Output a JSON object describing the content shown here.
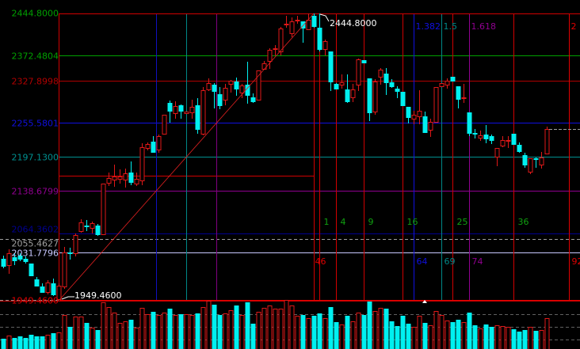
{
  "chart_data": {
    "type": "candlestick",
    "title": "",
    "colors": {
      "up": "#e01818",
      "down": "#00f0f0",
      "frame": "#d00000",
      "label_white": "#ffffff"
    },
    "ylim": [
      1949.46,
      2444.8
    ],
    "extremes": {
      "high_label": "2444.8000",
      "low_label": "1949.4600"
    },
    "price_levels": [
      {
        "value": 2444.8,
        "label": "2444.8000",
        "color": "#00a000",
        "style": "none"
      },
      {
        "value": 2372.4804,
        "label": "2372.4804",
        "color": "#00a000",
        "style": "solid"
      },
      {
        "value": 2327.8998,
        "label": "2327.8998",
        "color": "#b00000",
        "style": "solid"
      },
      {
        "value": 2255.5801,
        "label": "2255.5801",
        "color": "#1010e0",
        "style": "solid"
      },
      {
        "value": 2197.13,
        "label": "2197.1300",
        "color": "#009090",
        "style": "solid"
      },
      {
        "value": 2138.6799,
        "label": "2138.6799",
        "color": "#900090",
        "style": "solid"
      },
      {
        "value": 2064.3602,
        "label": "2064.3602",
        "color": "#000090",
        "style": "solid"
      },
      {
        "value": 2055.4627,
        "label": "2055.4627",
        "color": "#a0a0a0",
        "style": "dashed"
      },
      {
        "value": 2031.7796,
        "label": "2031.7796",
        "color": "#c8c8ff",
        "style": "solid"
      },
      {
        "value": 1949.46,
        "label": "1949.4600",
        "color": "#e00000",
        "style": "solid"
      }
    ],
    "fib_time_zones": [
      {
        "label": "1",
        "color": "#10a010"
      },
      {
        "label": "4",
        "color": "#10a010"
      },
      {
        "label": "9",
        "color": "#10a010"
      },
      {
        "label": "16",
        "color": "#10a010"
      },
      {
        "label": "25",
        "color": "#10a010"
      },
      {
        "label": "36",
        "color": "#10a010"
      }
    ],
    "fib_time_ratios": [
      {
        "ratio": "1.382",
        "count": "64",
        "color": "#1010e0"
      },
      {
        "ratio": "1.5",
        "count": "69",
        "color": "#008888"
      },
      {
        "ratio": "1.618",
        "count": "74",
        "color": "#900090"
      },
      {
        "ratio": "2",
        "count": "92",
        "color": "#e00000"
      }
    ],
    "base_count": {
      "count": "46",
      "color": "#e00000"
    },
    "retracement_time_lines": [
      {
        "ratio": 0.382,
        "color": "#1010c0"
      },
      {
        "ratio": 0.5,
        "color": "#008888"
      },
      {
        "ratio": 0.618,
        "color": "#800080"
      }
    ],
    "last_price": 2245.0,
    "candles_ohlc": [
      [
        2020.6,
        2026.1,
        2004.2,
        2008.3
      ],
      [
        2009.7,
        2037.1,
        1994.7,
        2030.2
      ],
      [
        2023.4,
        2030.2,
        2009.7,
        2017.9
      ],
      [
        2026.1,
        2030.2,
        2016.5,
        2020.6
      ],
      [
        2020.6,
        2024.8,
        2012.4,
        2016.5
      ],
      [
        2012.4,
        2012.4,
        1991.9,
        1991.9
      ],
      [
        1985.0,
        1989.2,
        1972.7,
        1974.1
      ],
      [
        1972.7,
        1978.2,
        1961.8,
        1963.1
      ],
      [
        1963.1,
        1983.7,
        1959.0,
        1979.6
      ],
      [
        1978.2,
        1986.4,
        1956.3,
        1959.0
      ],
      [
        1950.8,
        1978.2,
        1949.5,
        1974.1
      ],
      [
        1972.7,
        2041.1,
        1968.6,
        2031.6
      ],
      [
        2031.0,
        2039.8,
        2019.3,
        2030.2
      ],
      [
        2030.2,
        2064.4,
        2024.8,
        2061.7
      ],
      [
        2068.5,
        2089.0,
        2065.8,
        2083.6
      ],
      [
        2077.5,
        2087.7,
        2068.5,
        2076.7
      ],
      [
        2074.0,
        2084.9,
        2064.4,
        2082.2
      ],
      [
        2078.1,
        2080.8,
        2060.3,
        2063.1
      ],
      [
        2063.1,
        2150.6,
        2061.7,
        2150.6
      ],
      [
        2152.0,
        2169.8,
        2146.5,
        2160.2
      ],
      [
        2157.5,
        2183.5,
        2145.1,
        2162.9
      ],
      [
        2158.8,
        2175.2,
        2150.6,
        2162.9
      ],
      [
        2157.5,
        2176.6,
        2143.8,
        2168.4
      ],
      [
        2169.8,
        2188.9,
        2147.9,
        2153.3
      ],
      [
        2150.6,
        2169.8,
        2146.5,
        2158.8
      ],
      [
        2156.1,
        2220.4,
        2147.9,
        2213.5
      ],
      [
        2212.2,
        2221.8,
        2208.1,
        2219.0
      ],
      [
        2223.1,
        2232.7,
        2205.3,
        2205.3
      ],
      [
        2209.4,
        2235.4,
        2204.0,
        2232.7
      ],
      [
        2236.8,
        2269.7,
        2236.8,
        2269.7
      ],
      [
        2290.2,
        2294.3,
        2255.9,
        2276.5
      ],
      [
        2272.4,
        2292.9,
        2262.8,
        2284.7
      ],
      [
        2286.1,
        2287.4,
        2262.8,
        2276.5
      ],
      [
        2272.4,
        2275.1,
        2272.4,
        2275.1
      ],
      [
        2273.8,
        2295.7,
        2262.8,
        2283.3
      ],
      [
        2286.1,
        2298.4,
        2236.8,
        2245.0
      ],
      [
        2236.8,
        2317.6,
        2234.1,
        2312.1
      ],
      [
        2313.4,
        2332.6,
        2310.7,
        2324.4
      ],
      [
        2321.7,
        2324.4,
        2280.6,
        2310.7
      ],
      [
        2305.2,
        2317.6,
        2279.2,
        2286.1
      ],
      [
        2295.7,
        2323.0,
        2286.1,
        2316.2
      ],
      [
        2323.0,
        2329.9,
        2308.0,
        2328.5
      ],
      [
        2327.1,
        2334.0,
        2302.5,
        2314.8
      ],
      [
        2308.0,
        2323.0,
        2298.4,
        2320.3
      ],
      [
        2321.7,
        2361.3,
        2288.8,
        2303.9
      ],
      [
        2299.8,
        2306.6,
        2290.2,
        2292.9
      ],
      [
        2295.7,
        2346.3,
        2295.7,
        2346.3
      ],
      [
        2349.0,
        2362.7,
        2347.7,
        2358.6
      ],
      [
        2362.7,
        2384.6,
        2349.0,
        2381.9
      ],
      [
        2384.0,
        2390.1,
        2372.3,
        2384.6
      ],
      [
        2379.1,
        2421.5,
        2372.3,
        2418.8
      ],
      [
        2426.5,
        2440.7,
        2420.2,
        2427.0
      ],
      [
        2410.6,
        2438.0,
        2403.7,
        2431.1
      ],
      [
        2433.0,
        2440.7,
        2427.0,
        2433.8
      ],
      [
        2431.1,
        2431.1,
        2394.2,
        2420.2
      ],
      [
        2417.4,
        2444.8,
        2416.1,
        2433.8
      ],
      [
        2440.7,
        2444.8,
        2420.2,
        2422.9
      ],
      [
        2420.2,
        2444.8,
        2379.1,
        2383.2
      ],
      [
        2383.2,
        2399.6,
        2372.3,
        2396.9
      ],
      [
        2379.1,
        2379.1,
        2310.7,
        2327.1
      ],
      [
        2323.0,
        2324.4,
        2314.8,
        2314.8
      ],
      [
        2321.7,
        2339.4,
        2314.8,
        2325.8
      ],
      [
        2313.4,
        2339.4,
        2290.2,
        2292.9
      ],
      [
        2299.8,
        2323.0,
        2291.5,
        2313.4
      ],
      [
        2321.7,
        2366.8,
        2310.7,
        2365.4
      ],
      [
        2364.1,
        2364.1,
        2360.0,
        2360.0
      ],
      [
        2332.6,
        2332.6,
        2258.7,
        2273.8
      ],
      [
        2275.1,
        2331.2,
        2269.7,
        2327.1
      ],
      [
        2335.3,
        2350.3,
        2321.7,
        2347.7
      ],
      [
        2340.8,
        2350.3,
        2303.9,
        2325.8
      ],
      [
        2325.8,
        2331.2,
        2316.2,
        2318.9
      ],
      [
        2314.8,
        2318.9,
        2298.4,
        2310.7
      ],
      [
        2309.3,
        2309.3,
        2286.1,
        2286.1
      ],
      [
        2283.3,
        2283.3,
        2254.6,
        2265.5
      ],
      [
        2262.8,
        2276.5,
        2253.2,
        2269.7
      ],
      [
        2266.9,
        2312.1,
        2253.2,
        2276.5
      ],
      [
        2266.9,
        2275.1,
        2239.5,
        2239.5
      ],
      [
        2243.6,
        2262.8,
        2231.3,
        2257.3
      ],
      [
        2257.3,
        2317.6,
        2257.3,
        2317.6
      ],
      [
        2318.9,
        2324.4,
        2318.9,
        2324.4
      ],
      [
        2321.7,
        2332.6,
        2314.8,
        2328.5
      ],
      [
        2335.3,
        2335.3,
        2328.5,
        2328.5
      ],
      [
        2318.9,
        2318.9,
        2280.6,
        2297.0
      ],
      [
        2299.0,
        2323.0,
        2290.2,
        2299.8
      ],
      [
        2273.8,
        2273.8,
        2232.7,
        2238.2
      ],
      [
        2238.8,
        2245.0,
        2228.6,
        2238.2
      ],
      [
        2230.0,
        2242.3,
        2224.5,
        2234.1
      ],
      [
        2235.4,
        2251.8,
        2220.4,
        2228.6
      ],
      [
        2232.7,
        2235.4,
        2219.0,
        2225.9
      ],
      [
        2197.2,
        2212.2,
        2180.7,
        2212.2
      ],
      [
        2216.3,
        2232.7,
        2213.5,
        2225.9
      ],
      [
        2225.3,
        2232.7,
        2212.2,
        2225.9
      ],
      [
        2236.8,
        2236.8,
        2219.0,
        2219.0
      ],
      [
        2217.6,
        2221.8,
        2204.0,
        2206.7
      ],
      [
        2199.9,
        2204.0,
        2178.0,
        2183.5
      ],
      [
        2171.1,
        2194.4,
        2167.0,
        2194.4
      ],
      [
        2195.0,
        2195.8,
        2178.0,
        2194.4
      ],
      [
        2183.5,
        2205.3,
        2176.6,
        2195.8
      ],
      [
        2202.6,
        2249.1,
        2202.6,
        2245.0
      ]
    ],
    "volume_relative": [
      13,
      17,
      14,
      16,
      14,
      18,
      16,
      16,
      18,
      20,
      21,
      43,
      28,
      41,
      41,
      33,
      27,
      24,
      59,
      53,
      46,
      33,
      35,
      37,
      27,
      52,
      44,
      47,
      43,
      46,
      51,
      43,
      44,
      44,
      43,
      45,
      53,
      61,
      56,
      43,
      45,
      49,
      55,
      43,
      59,
      32,
      47,
      52,
      55,
      51,
      51,
      62,
      55,
      42,
      43,
      39,
      42,
      45,
      39,
      53,
      34,
      31,
      42,
      35,
      46,
      43,
      60,
      48,
      52,
      51,
      35,
      29,
      42,
      32,
      28,
      42,
      33,
      30,
      48,
      43,
      36,
      34,
      37,
      34,
      46,
      30,
      26,
      31,
      28,
      30,
      29,
      28,
      25,
      22,
      24,
      28,
      23,
      24,
      39
    ]
  }
}
